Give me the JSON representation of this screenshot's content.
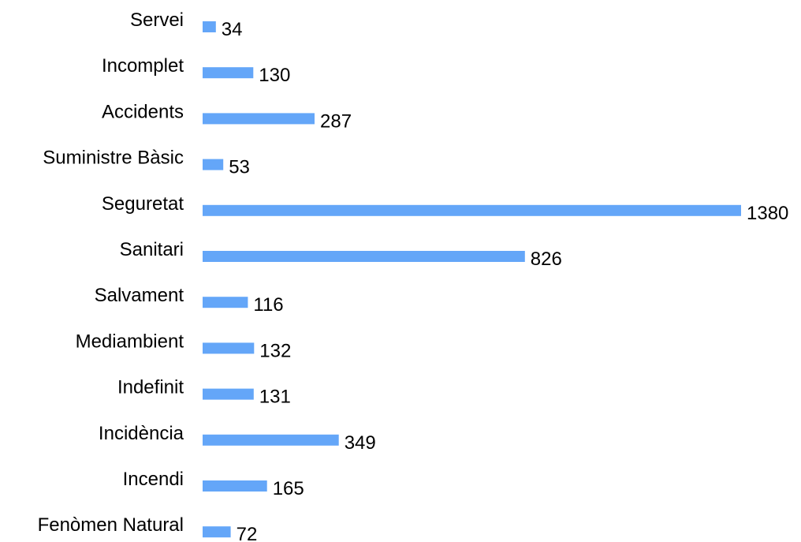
{
  "chart_data": {
    "type": "bar",
    "orientation": "horizontal",
    "categories": [
      "Servei",
      "Incomplet",
      "Accidents",
      "Suministre Bàsic",
      "Seguretat",
      "Sanitari",
      "Salvament",
      "Mediambient",
      "Indefinit",
      "Incidència",
      "Incendi",
      "Fenòmen Natural"
    ],
    "values": [
      34,
      130,
      287,
      53,
      1380,
      826,
      116,
      132,
      131,
      349,
      165,
      72
    ],
    "value_labels": [
      "34",
      "130",
      "287",
      "53",
      "1380",
      "826",
      "116",
      "132",
      "131",
      "349",
      "165",
      "72"
    ],
    "xlim": [
      0,
      1380
    ],
    "grid": false,
    "legend": "none",
    "bar_color": "#64a6f8"
  }
}
